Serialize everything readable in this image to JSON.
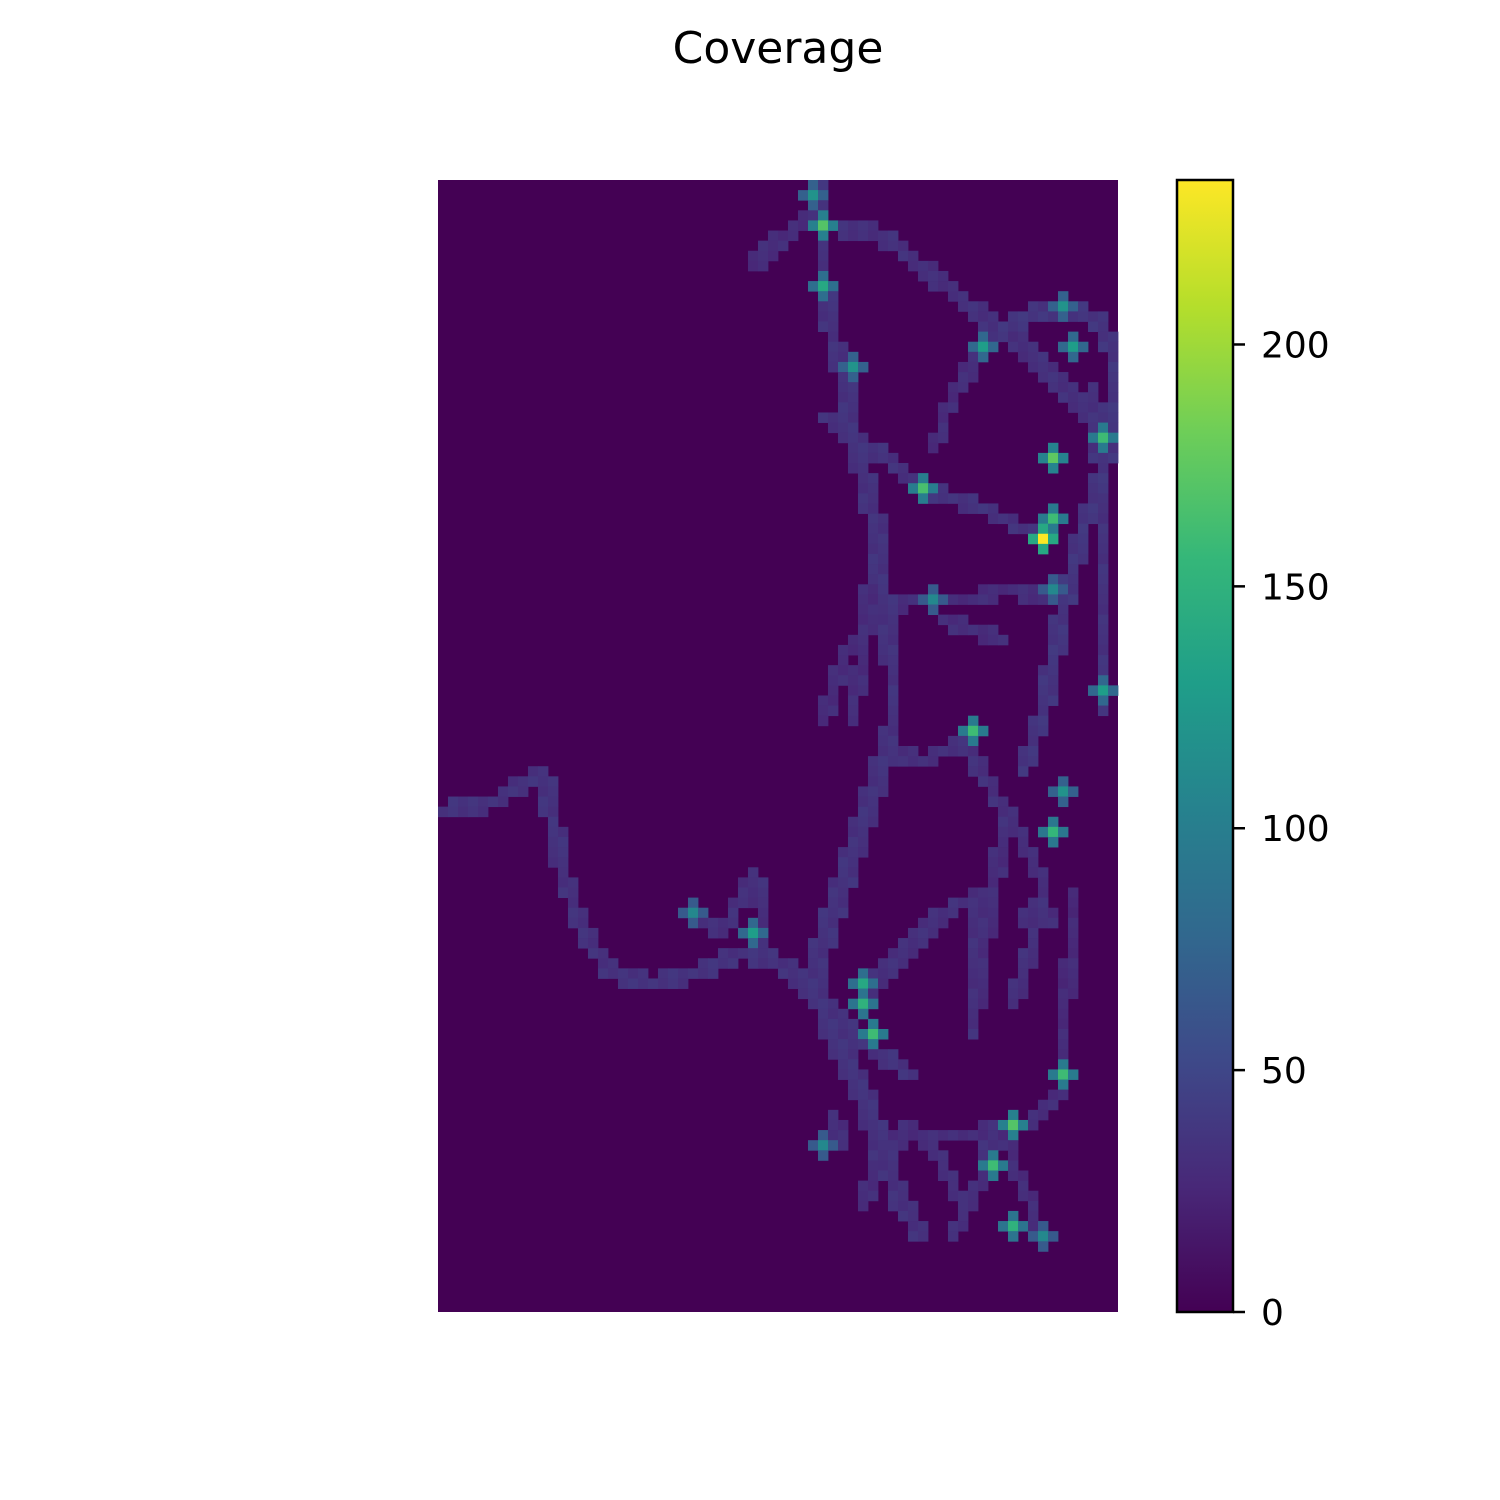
{
  "chart_data": {
    "type": "heatmap",
    "title": "Coverage",
    "xlabel": "",
    "ylabel": "",
    "axes_visible": false,
    "grid": false,
    "colormap": "viridis",
    "colormap_stops": [
      "#440154",
      "#482878",
      "#3e4989",
      "#31688e",
      "#26828e",
      "#1f9e89",
      "#35b779",
      "#6ece58",
      "#b5de2b",
      "#fde725"
    ],
    "background_color": "#440154",
    "rows": 112,
    "cols": 68,
    "colorbar": {
      "vmin": 0,
      "vmax": 234,
      "ticks": [
        0,
        50,
        100,
        150,
        200
      ],
      "tick_labels": [
        "0",
        "50",
        "100",
        "150",
        "200"
      ]
    },
    "paths": [
      {
        "width": 1.3,
        "value": 30,
        "points": [
          [
            37,
            0
          ],
          [
            38,
            2
          ],
          [
            38,
            6
          ],
          [
            38,
            10
          ],
          [
            39,
            15
          ],
          [
            40,
            19
          ],
          [
            41,
            25
          ],
          [
            43,
            32
          ],
          [
            44,
            40
          ],
          [
            45,
            48
          ],
          [
            45,
            54
          ],
          [
            43,
            60
          ],
          [
            41,
            66
          ],
          [
            39,
            72
          ],
          [
            37,
            78
          ],
          [
            39,
            84
          ],
          [
            42,
            90
          ],
          [
            44,
            96
          ],
          [
            46,
            101
          ],
          [
            48,
            104
          ]
        ]
      },
      {
        "width": 1.1,
        "value": 28,
        "points": [
          [
            39,
            4
          ],
          [
            44,
            5
          ],
          [
            49,
            9
          ],
          [
            54,
            13
          ],
          [
            58,
            16
          ],
          [
            62,
            20
          ],
          [
            66,
            24
          ]
        ]
      },
      {
        "width": 1.1,
        "value": 26,
        "points": [
          [
            31,
            8
          ],
          [
            34,
            5
          ],
          [
            37,
            3
          ],
          [
            39,
            4
          ]
        ]
      },
      {
        "width": 1.2,
        "value": 32,
        "points": [
          [
            54,
            16
          ],
          [
            58,
            13
          ],
          [
            62,
            12
          ],
          [
            65,
            13
          ],
          [
            67,
            16
          ],
          [
            67,
            21
          ],
          [
            66,
            28
          ],
          [
            64,
            34
          ],
          [
            62,
            42
          ],
          [
            60,
            52
          ],
          [
            58,
            58
          ]
        ]
      },
      {
        "width": 1.0,
        "value": 26,
        "points": [
          [
            49,
            26
          ],
          [
            51,
            21
          ],
          [
            54,
            16
          ]
        ]
      },
      {
        "width": 1.1,
        "value": 30,
        "points": [
          [
            38,
            23
          ],
          [
            43,
            26
          ],
          [
            48,
            30
          ],
          [
            54,
            32
          ],
          [
            60,
            35
          ]
        ]
      },
      {
        "width": 1.0,
        "value": 26,
        "points": [
          [
            38,
            53
          ],
          [
            40,
            47
          ],
          [
            43,
            43
          ],
          [
            47,
            41
          ],
          [
            52,
            41
          ],
          [
            57,
            40
          ],
          [
            61,
            41
          ]
        ]
      },
      {
        "width": 1.0,
        "value": 26,
        "points": [
          [
            43,
            37
          ],
          [
            42,
            45
          ],
          [
            41,
            53
          ]
        ]
      },
      {
        "width": 1.0,
        "value": 28,
        "points": [
          [
            44,
            56
          ],
          [
            48,
            57
          ],
          [
            52,
            55
          ],
          [
            55,
            60
          ],
          [
            58,
            65
          ],
          [
            60,
            69
          ],
          [
            59,
            75
          ],
          [
            57,
            81
          ]
        ]
      },
      {
        "width": 1.0,
        "value": 26,
        "points": [
          [
            50,
            43
          ],
          [
            56,
            45
          ]
        ]
      },
      {
        "width": 1.1,
        "value": 30,
        "points": [
          [
            0,
            62
          ],
          [
            5,
            61
          ],
          [
            10,
            58
          ],
          [
            11,
            63
          ],
          [
            12,
            68
          ],
          [
            14,
            74
          ],
          [
            17,
            78
          ],
          [
            21,
            79
          ],
          [
            25,
            78
          ],
          [
            30,
            76
          ],
          [
            34,
            77
          ],
          [
            37,
            80
          ],
          [
            42,
            85
          ],
          [
            47,
            88
          ]
        ]
      },
      {
        "width": 1.0,
        "value": 28,
        "points": [
          [
            24,
            72
          ],
          [
            28,
            74
          ],
          [
            30,
            70
          ],
          [
            31,
            68
          ],
          [
            32,
            72
          ],
          [
            31,
            75
          ],
          [
            34,
            77
          ]
        ]
      },
      {
        "width": 1.0,
        "value": 28,
        "points": [
          [
            42,
            80
          ],
          [
            46,
            76
          ],
          [
            50,
            72
          ],
          [
            54,
            70
          ],
          [
            53,
            76
          ],
          [
            53,
            84
          ]
        ]
      },
      {
        "width": 1.0,
        "value": 26,
        "points": [
          [
            56,
            64
          ],
          [
            55,
            70
          ],
          [
            54,
            76
          ],
          [
            53,
            84
          ]
        ]
      },
      {
        "width": 1.0,
        "value": 26,
        "points": [
          [
            58,
            73
          ],
          [
            60,
            71
          ],
          [
            61,
            73
          ]
        ]
      },
      {
        "width": 1.0,
        "value": 26,
        "points": [
          [
            46,
            94
          ],
          [
            52,
            94
          ],
          [
            58,
            93
          ],
          [
            62,
            90
          ]
        ]
      },
      {
        "width": 1.0,
        "value": 26,
        "points": [
          [
            42,
            101
          ],
          [
            43,
            98
          ],
          [
            45,
            95
          ],
          [
            47,
            93
          ],
          [
            50,
            97
          ],
          [
            52,
            101
          ]
        ]
      },
      {
        "width": 1.0,
        "value": 28,
        "points": [
          [
            55,
            93
          ],
          [
            54,
            98
          ],
          [
            51,
            104
          ]
        ]
      },
      {
        "width": 1.0,
        "value": 26,
        "points": [
          [
            56,
            94
          ],
          [
            58,
            99
          ],
          [
            60,
            104
          ]
        ]
      },
      {
        "width": 1.0,
        "value": 24,
        "points": [
          [
            63,
            70
          ],
          [
            63,
            75
          ],
          [
            62,
            82
          ],
          [
            62,
            88
          ]
        ]
      },
      {
        "width": 1.0,
        "value": 26,
        "points": [
          [
            40,
            95
          ],
          [
            39,
            92
          ]
        ]
      },
      {
        "width": 1.0,
        "value": 30,
        "points": [
          [
            65,
            20
          ],
          [
            66,
            30
          ],
          [
            66,
            40
          ],
          [
            66,
            52
          ]
        ]
      }
    ],
    "hotspots": [
      {
        "row": 4,
        "col": 38,
        "value": 170
      },
      {
        "row": 10,
        "col": 38,
        "value": 140
      },
      {
        "row": 1,
        "col": 37,
        "value": 120
      },
      {
        "row": 18,
        "col": 41,
        "value": 120
      },
      {
        "row": 16,
        "col": 54,
        "value": 130
      },
      {
        "row": 12,
        "col": 62,
        "value": 120
      },
      {
        "row": 16,
        "col": 63,
        "value": 130
      },
      {
        "row": 27,
        "col": 61,
        "value": 175
      },
      {
        "row": 30,
        "col": 48,
        "value": 165
      },
      {
        "row": 35,
        "col": 60,
        "value": 234
      },
      {
        "row": 33,
        "col": 61,
        "value": 160
      },
      {
        "row": 25,
        "col": 66,
        "value": 160
      },
      {
        "row": 41,
        "col": 49,
        "value": 110
      },
      {
        "row": 40,
        "col": 61,
        "value": 110
      },
      {
        "row": 50,
        "col": 66,
        "value": 130
      },
      {
        "row": 54,
        "col": 53,
        "value": 160
      },
      {
        "row": 64,
        "col": 61,
        "value": 155
      },
      {
        "row": 60,
        "col": 62,
        "value": 120
      },
      {
        "row": 74,
        "col": 31,
        "value": 130
      },
      {
        "row": 72,
        "col": 25,
        "value": 110
      },
      {
        "row": 79,
        "col": 42,
        "value": 140
      },
      {
        "row": 81,
        "col": 42,
        "value": 150
      },
      {
        "row": 84,
        "col": 43,
        "value": 160
      },
      {
        "row": 88,
        "col": 62,
        "value": 160
      },
      {
        "row": 93,
        "col": 57,
        "value": 170
      },
      {
        "row": 97,
        "col": 55,
        "value": 160
      },
      {
        "row": 103,
        "col": 57,
        "value": 150
      },
      {
        "row": 104,
        "col": 60,
        "value": 110
      },
      {
        "row": 95,
        "col": 38,
        "value": 110
      }
    ]
  }
}
